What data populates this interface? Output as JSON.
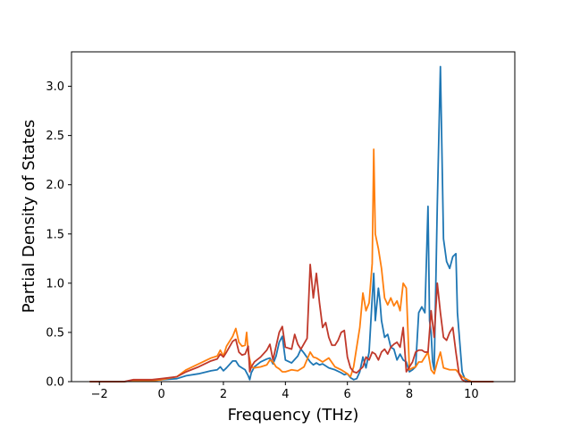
{
  "chart_data": {
    "type": "line",
    "title": "",
    "xlabel": "Frequency (THz)",
    "ylabel": "Partial Density of States",
    "xlim": [
      -2.9,
      11.4
    ],
    "ylim": [
      0,
      3.35
    ],
    "xticks": [
      {
        "value": -2,
        "label": "−2"
      },
      {
        "value": 0,
        "label": "0"
      },
      {
        "value": 2,
        "label": "2"
      },
      {
        "value": 4,
        "label": "4"
      },
      {
        "value": 6,
        "label": "6"
      },
      {
        "value": 8,
        "label": "8"
      },
      {
        "value": 10,
        "label": "10"
      }
    ],
    "yticks": [
      {
        "value": 0,
        "label": "0.0"
      },
      {
        "value": 0.5,
        "label": "0.5"
      },
      {
        "value": 1.0,
        "label": "1.0"
      },
      {
        "value": 1.5,
        "label": "1.5"
      },
      {
        "value": 2.0,
        "label": "2.0"
      },
      {
        "value": 2.5,
        "label": "2.5"
      },
      {
        "value": 3.0,
        "label": "3.0"
      }
    ],
    "grid": false,
    "legend": false,
    "series": [
      {
        "color": "#1f77b4",
        "x": [
          -2.3,
          -1.2,
          -0.9,
          -0.6,
          -0.3,
          0.0,
          0.5,
          0.8,
          1.2,
          1.6,
          1.8,
          1.9,
          2.0,
          2.1,
          2.3,
          2.4,
          2.5,
          2.6,
          2.7,
          2.8,
          2.85,
          2.9,
          3.0,
          3.2,
          3.4,
          3.5,
          3.6,
          3.7,
          3.8,
          3.9,
          4.0,
          4.2,
          4.4,
          4.5,
          4.6,
          4.8,
          4.9,
          5.0,
          5.1,
          5.2,
          5.4,
          5.6,
          5.8,
          5.9,
          6.0,
          6.1,
          6.2,
          6.3,
          6.4,
          6.5,
          6.6,
          6.7,
          6.8,
          6.85,
          6.9,
          7.0,
          7.05,
          7.1,
          7.2,
          7.3,
          7.4,
          7.5,
          7.6,
          7.7,
          7.8,
          7.9,
          8.0,
          8.1,
          8.2,
          8.3,
          8.4,
          8.5,
          8.6,
          8.65,
          8.7,
          8.75,
          8.8,
          8.9,
          9.0,
          9.1,
          9.2,
          9.3,
          9.4,
          9.5,
          9.55,
          9.6,
          9.7,
          9.8,
          10.0,
          10.7
        ],
        "y": [
          0.0,
          0.0,
          0.01,
          0.01,
          0.01,
          0.02,
          0.03,
          0.06,
          0.08,
          0.11,
          0.12,
          0.15,
          0.11,
          0.14,
          0.21,
          0.21,
          0.16,
          0.14,
          0.12,
          0.06,
          0.02,
          0.09,
          0.15,
          0.2,
          0.23,
          0.24,
          0.18,
          0.26,
          0.4,
          0.46,
          0.22,
          0.19,
          0.26,
          0.33,
          0.29,
          0.2,
          0.17,
          0.19,
          0.17,
          0.18,
          0.14,
          0.12,
          0.09,
          0.07,
          0.08,
          0.04,
          0.02,
          0.03,
          0.1,
          0.25,
          0.14,
          0.3,
          0.85,
          1.1,
          0.62,
          0.95,
          0.82,
          0.62,
          0.45,
          0.48,
          0.35,
          0.33,
          0.22,
          0.28,
          0.22,
          0.2,
          0.1,
          0.12,
          0.15,
          0.7,
          0.76,
          0.7,
          1.78,
          0.62,
          0.5,
          0.2,
          0.12,
          1.8,
          3.2,
          1.45,
          1.22,
          1.15,
          1.27,
          1.3,
          0.7,
          0.5,
          0.1,
          0.02,
          0.0,
          0.0
        ]
      },
      {
        "color": "#ff7f0e",
        "x": [
          -2.3,
          -1.2,
          -0.9,
          -0.6,
          -0.3,
          0.0,
          0.5,
          0.8,
          1.2,
          1.6,
          1.8,
          1.9,
          2.0,
          2.1,
          2.3,
          2.4,
          2.5,
          2.6,
          2.7,
          2.75,
          2.8,
          2.9,
          3.0,
          3.2,
          3.4,
          3.5,
          3.6,
          3.7,
          3.8,
          3.9,
          4.0,
          4.2,
          4.4,
          4.6,
          4.8,
          4.9,
          5.0,
          5.2,
          5.4,
          5.6,
          5.8,
          6.0,
          6.1,
          6.2,
          6.3,
          6.4,
          6.5,
          6.6,
          6.7,
          6.8,
          6.85,
          6.9,
          7.0,
          7.1,
          7.2,
          7.3,
          7.4,
          7.5,
          7.6,
          7.7,
          7.8,
          7.9,
          8.0,
          8.1,
          8.2,
          8.3,
          8.4,
          8.5,
          8.6,
          8.7,
          8.8,
          8.9,
          9.0,
          9.1,
          9.3,
          9.5,
          9.7,
          10.0,
          10.7
        ],
        "y": [
          0.0,
          0.0,
          0.01,
          0.01,
          0.01,
          0.02,
          0.05,
          0.12,
          0.18,
          0.24,
          0.26,
          0.32,
          0.26,
          0.36,
          0.46,
          0.54,
          0.4,
          0.36,
          0.37,
          0.5,
          0.3,
          0.15,
          0.14,
          0.15,
          0.17,
          0.22,
          0.2,
          0.15,
          0.13,
          0.1,
          0.1,
          0.12,
          0.11,
          0.15,
          0.3,
          0.25,
          0.24,
          0.2,
          0.24,
          0.15,
          0.12,
          0.08,
          0.05,
          0.15,
          0.35,
          0.55,
          0.9,
          0.72,
          0.8,
          1.2,
          2.36,
          1.5,
          1.35,
          1.15,
          0.85,
          0.78,
          0.85,
          0.77,
          0.82,
          0.72,
          1.0,
          0.95,
          0.12,
          0.14,
          0.15,
          0.2,
          0.2,
          0.25,
          0.3,
          0.12,
          0.08,
          0.2,
          0.3,
          0.14,
          0.12,
          0.12,
          0.05,
          0.0,
          0.0
        ]
      },
      {
        "color": "#c0392b",
        "x": [
          -2.3,
          -1.2,
          -0.9,
          -0.6,
          -0.3,
          0.0,
          0.5,
          0.8,
          1.2,
          1.6,
          1.8,
          1.9,
          2.0,
          2.1,
          2.3,
          2.4,
          2.5,
          2.6,
          2.7,
          2.8,
          2.85,
          2.9,
          3.0,
          3.2,
          3.4,
          3.5,
          3.6,
          3.7,
          3.8,
          3.9,
          4.0,
          4.2,
          4.3,
          4.4,
          4.5,
          4.7,
          4.8,
          4.9,
          5.0,
          5.1,
          5.2,
          5.3,
          5.4,
          5.5,
          5.6,
          5.7,
          5.8,
          5.9,
          6.0,
          6.1,
          6.2,
          6.3,
          6.4,
          6.5,
          6.6,
          6.7,
          6.8,
          6.9,
          7.0,
          7.1,
          7.2,
          7.3,
          7.4,
          7.5,
          7.6,
          7.7,
          7.8,
          7.9,
          8.0,
          8.1,
          8.2,
          8.3,
          8.4,
          8.5,
          8.6,
          8.7,
          8.8,
          8.9,
          9.0,
          9.1,
          9.2,
          9.3,
          9.4,
          9.5,
          9.6,
          9.7,
          9.8,
          10.0,
          10.7
        ],
        "y": [
          0.0,
          0.0,
          0.02,
          0.02,
          0.02,
          0.03,
          0.05,
          0.1,
          0.15,
          0.21,
          0.23,
          0.28,
          0.25,
          0.3,
          0.41,
          0.43,
          0.3,
          0.27,
          0.28,
          0.36,
          0.1,
          0.15,
          0.2,
          0.25,
          0.32,
          0.38,
          0.22,
          0.36,
          0.5,
          0.56,
          0.35,
          0.33,
          0.48,
          0.38,
          0.33,
          0.44,
          1.19,
          0.85,
          1.1,
          0.8,
          0.55,
          0.6,
          0.45,
          0.37,
          0.37,
          0.42,
          0.5,
          0.52,
          0.25,
          0.14,
          0.1,
          0.09,
          0.12,
          0.15,
          0.25,
          0.22,
          0.3,
          0.28,
          0.22,
          0.3,
          0.33,
          0.28,
          0.35,
          0.38,
          0.4,
          0.35,
          0.55,
          0.1,
          0.15,
          0.2,
          0.3,
          0.32,
          0.32,
          0.3,
          0.3,
          0.72,
          0.45,
          1.0,
          0.7,
          0.45,
          0.42,
          0.5,
          0.55,
          0.3,
          0.08,
          0.02,
          0.0,
          0.0,
          0.0
        ]
      }
    ]
  }
}
